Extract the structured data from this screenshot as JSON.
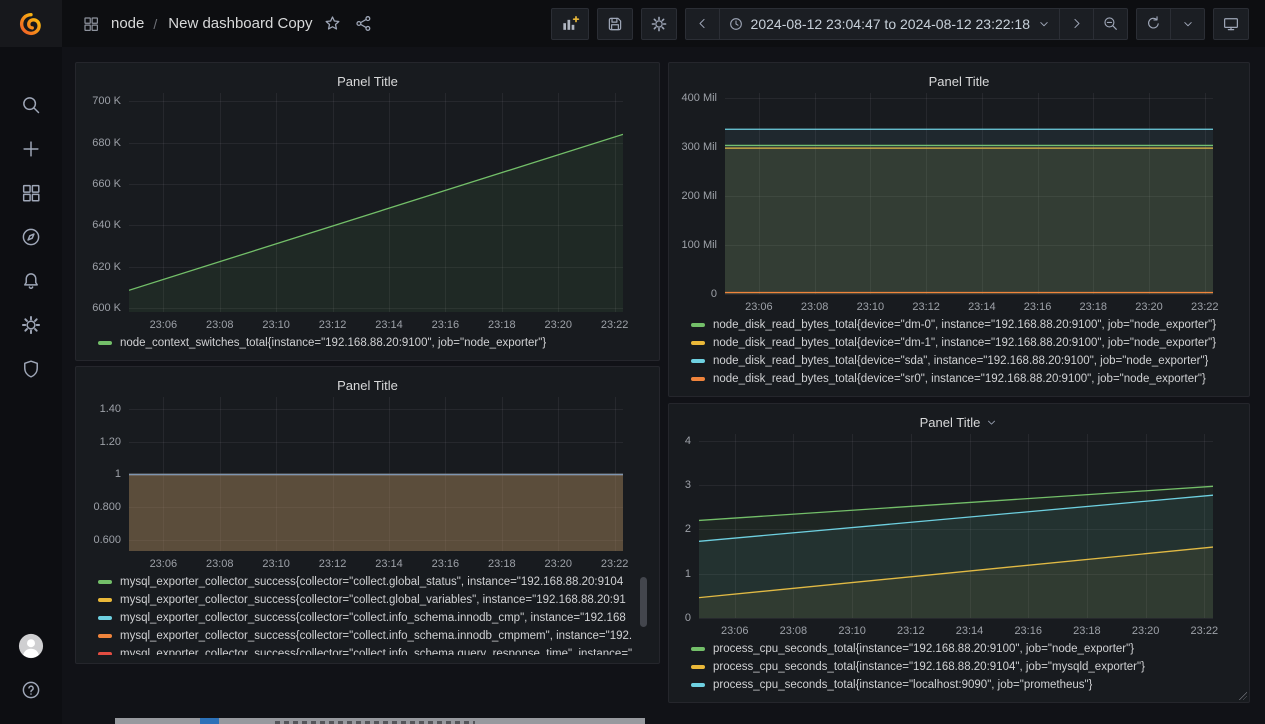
{
  "nav": {
    "breadcrumb": {
      "section": "node",
      "separator": "/",
      "title": "New dashboard Copy"
    },
    "time_range": "2024-08-12 23:04:47 to 2024-08-12 23:22:18",
    "toolbar_icons": [
      "panel-add",
      "save",
      "gear",
      "chevron-left",
      "clock",
      "chevron-down",
      "chevron-right",
      "zoom-out",
      "refresh",
      "chevron-down",
      "monitor"
    ],
    "breadcrumb_icons": [
      "apps",
      "star",
      "share"
    ]
  },
  "sidebar": {
    "top_icons": [
      "search",
      "plus",
      "apps",
      "compass",
      "bell",
      "gear",
      "shield"
    ],
    "bottom_icons": [
      "avatar",
      "question-circle"
    ],
    "logo": "grafana"
  },
  "colors": {
    "green": "#73BF69",
    "yellow": "#EAB839",
    "cyan": "#6ED0E0",
    "orange": "#EF843C",
    "red": "#E24D42",
    "panel_bg": "#181b1f",
    "dashboard_bg": "#111217"
  },
  "panels": [
    {
      "title": "Panel Title",
      "has_dropdown": false,
      "legend": [
        {
          "color": "#73BF69",
          "label": "node_context_switches_total{instance=\"192.168.88.20:9100\", job=\"node_exporter\"}"
        }
      ],
      "chart_data": {
        "type": "line",
        "ylim": [
          598000,
          704000
        ],
        "yticks": [
          {
            "v": 600000,
            "label": "600 K"
          },
          {
            "v": 620000,
            "label": "620 K"
          },
          {
            "v": 640000,
            "label": "640 K"
          },
          {
            "v": 660000,
            "label": "660 K"
          },
          {
            "v": 680000,
            "label": "680 K"
          },
          {
            "v": 700000,
            "label": "700 K"
          }
        ],
        "xticks": [
          {
            "x": 0.0695,
            "label": "23:06"
          },
          {
            "x": 0.1837,
            "label": "23:08"
          },
          {
            "x": 0.2979,
            "label": "23:10"
          },
          {
            "x": 0.4121,
            "label": "23:12"
          },
          {
            "x": 0.5263,
            "label": "23:14"
          },
          {
            "x": 0.6405,
            "label": "23:16"
          },
          {
            "x": 0.7547,
            "label": "23:18"
          },
          {
            "x": 0.8689,
            "label": "23:20"
          },
          {
            "x": 0.9831,
            "label": "23:22"
          }
        ],
        "series": [
          {
            "name": "node_context_switches_total{instance=\"192.168.88.20:9100\", job=\"node_exporter\"}",
            "color": "#73BF69",
            "fill_opacity": 0.09,
            "points": [
              [
                0,
                608500
              ],
              [
                1,
                684000
              ]
            ]
          }
        ]
      }
    },
    {
      "title": "Panel Title",
      "has_dropdown": false,
      "legend": [
        {
          "color": "#73BF69",
          "label": "node_disk_read_bytes_total{device=\"dm-0\", instance=\"192.168.88.20:9100\", job=\"node_exporter\"}"
        },
        {
          "color": "#EAB839",
          "label": "node_disk_read_bytes_total{device=\"dm-1\", instance=\"192.168.88.20:9100\", job=\"node_exporter\"}"
        },
        {
          "color": "#6ED0E0",
          "label": "node_disk_read_bytes_total{device=\"sda\", instance=\"192.168.88.20:9100\", job=\"node_exporter\"}"
        },
        {
          "color": "#EF843C",
          "label": "node_disk_read_bytes_total{device=\"sr0\", instance=\"192.168.88.20:9100\", job=\"node_exporter\"}"
        }
      ],
      "chart_data": {
        "type": "line",
        "ylim": [
          0,
          410000000
        ],
        "yticks": [
          {
            "v": 0,
            "label": "0"
          },
          {
            "v": 100000000,
            "label": "100 Mil"
          },
          {
            "v": 200000000,
            "label": "200 Mil"
          },
          {
            "v": 300000000,
            "label": "300 Mil"
          },
          {
            "v": 400000000,
            "label": "400 Mil"
          }
        ],
        "xticks": [
          {
            "x": 0.0695,
            "label": "23:06"
          },
          {
            "x": 0.1837,
            "label": "23:08"
          },
          {
            "x": 0.2979,
            "label": "23:10"
          },
          {
            "x": 0.4121,
            "label": "23:12"
          },
          {
            "x": 0.5263,
            "label": "23:14"
          },
          {
            "x": 0.6405,
            "label": "23:16"
          },
          {
            "x": 0.7547,
            "label": "23:18"
          },
          {
            "x": 0.8689,
            "label": "23:20"
          },
          {
            "x": 0.9831,
            "label": "23:22"
          }
        ],
        "series": [
          {
            "name": "dm-0",
            "color": "#73BF69",
            "fill_opacity": 0.08,
            "points": [
              [
                0,
                303000000
              ],
              [
                1,
                303000000
              ]
            ]
          },
          {
            "name": "dm-1",
            "color": "#EAB839",
            "fill_opacity": 0.08,
            "points": [
              [
                0,
                297500000
              ],
              [
                1,
                297500000
              ]
            ]
          },
          {
            "name": "sda",
            "color": "#6ED0E0",
            "fill_opacity": 0.08,
            "points": [
              [
                0,
                336000000
              ],
              [
                1,
                336000000
              ]
            ]
          },
          {
            "name": "sr0",
            "color": "#EF843C",
            "fill_opacity": 0.08,
            "points": [
              [
                0,
                3000000
              ],
              [
                1,
                3000000
              ]
            ]
          }
        ]
      }
    },
    {
      "title": "Panel Title",
      "has_dropdown": false,
      "legend": [
        {
          "color": "#73BF69",
          "label": "mysql_exporter_collector_success{collector=\"collect.global_status\", instance=\"192.168.88.20:9104"
        },
        {
          "color": "#EAB839",
          "label": "mysql_exporter_collector_success{collector=\"collect.global_variables\", instance=\"192.168.88.20:91"
        },
        {
          "color": "#6ED0E0",
          "label": "mysql_exporter_collector_success{collector=\"collect.info_schema.innodb_cmp\", instance=\"192.168"
        },
        {
          "color": "#EF843C",
          "label": "mysql_exporter_collector_success{collector=\"collect.info_schema.innodb_cmpmem\", instance=\"192."
        },
        {
          "color": "#E24D42",
          "label": "mysql_exporter_collector_success{collector=\"collect.info_schema.query_response_time\", instance=\""
        }
      ],
      "has_legend_scrollbar": true,
      "chart_data": {
        "type": "line",
        "ylim": [
          0.536,
          1.47
        ],
        "yticks": [
          {
            "v": 0.6,
            "label": "0.600"
          },
          {
            "v": 0.8,
            "label": "0.800"
          },
          {
            "v": 1,
            "label": "1"
          },
          {
            "v": 1.2,
            "label": "1.20"
          },
          {
            "v": 1.4,
            "label": "1.40"
          }
        ],
        "xticks": [
          {
            "x": 0.0695,
            "label": "23:06"
          },
          {
            "x": 0.1837,
            "label": "23:08"
          },
          {
            "x": 0.2979,
            "label": "23:10"
          },
          {
            "x": 0.4121,
            "label": "23:12"
          },
          {
            "x": 0.5263,
            "label": "23:14"
          },
          {
            "x": 0.6405,
            "label": "23:16"
          },
          {
            "x": 0.7547,
            "label": "23:18"
          },
          {
            "x": 0.8689,
            "label": "23:20"
          },
          {
            "x": 0.9831,
            "label": "23:22"
          }
        ],
        "series": [
          {
            "name": "collect.global_status",
            "color": "#73BF69",
            "fill_opacity": 0.1,
            "line_opacity": 0.5,
            "points": [
              [
                0,
                1
              ],
              [
                1,
                1
              ]
            ]
          },
          {
            "name": "collect.global_variables",
            "color": "#EAB839",
            "fill_opacity": 0.1,
            "line_opacity": 0.5,
            "points": [
              [
                0,
                1
              ],
              [
                1,
                1
              ]
            ]
          },
          {
            "name": "collect.info_schema.innodb_cmp",
            "color": "#6ED0E0",
            "fill_opacity": 0.1,
            "line_opacity": 0.5,
            "points": [
              [
                0,
                1
              ],
              [
                1,
                1
              ]
            ]
          },
          {
            "name": "collect.info_schema.innodb_cmpmem",
            "color": "#EF843C",
            "fill_opacity": 0.1,
            "line_opacity": 0.5,
            "points": [
              [
                0,
                1
              ],
              [
                1,
                1
              ]
            ]
          },
          {
            "name": "collect.info_schema.query_response_time",
            "color": "#E24D42",
            "fill_opacity": 0.1,
            "line_opacity": 0.5,
            "points": [
              [
                0,
                1
              ],
              [
                1,
                1
              ]
            ]
          }
        ],
        "overlay_line": {
          "v": 1,
          "color": "#7E95B0"
        }
      }
    },
    {
      "title": "Panel Title",
      "has_dropdown": true,
      "legend": [
        {
          "color": "#73BF69",
          "label": "process_cpu_seconds_total{instance=\"192.168.88.20:9100\", job=\"node_exporter\"}"
        },
        {
          "color": "#EAB839",
          "label": "process_cpu_seconds_total{instance=\"192.168.88.20:9104\", job=\"mysqld_exporter\"}"
        },
        {
          "color": "#6ED0E0",
          "label": "process_cpu_seconds_total{instance=\"localhost:9090\", job=\"prometheus\"}"
        }
      ],
      "has_resize_handle": true,
      "chart_data": {
        "type": "line",
        "ylim": [
          0,
          4.15
        ],
        "yticks": [
          {
            "v": 0,
            "label": "0"
          },
          {
            "v": 1,
            "label": "1"
          },
          {
            "v": 2,
            "label": "2"
          },
          {
            "v": 3,
            "label": "3"
          },
          {
            "v": 4,
            "label": "4"
          }
        ],
        "xticks": [
          {
            "x": 0.0695,
            "label": "23:06"
          },
          {
            "x": 0.1837,
            "label": "23:08"
          },
          {
            "x": 0.2979,
            "label": "23:10"
          },
          {
            "x": 0.4121,
            "label": "23:12"
          },
          {
            "x": 0.5263,
            "label": "23:14"
          },
          {
            "x": 0.6405,
            "label": "23:16"
          },
          {
            "x": 0.7547,
            "label": "23:18"
          },
          {
            "x": 0.8689,
            "label": "23:20"
          },
          {
            "x": 0.9831,
            "label": "23:22"
          }
        ],
        "series": [
          {
            "name": "node_exporter",
            "color": "#73BF69",
            "fill_opacity": 0.07,
            "points": [
              [
                0,
                2.2
              ],
              [
                1,
                2.97
              ]
            ]
          },
          {
            "name": "mysqld_exporter",
            "color": "#EAB839",
            "fill_opacity": 0.07,
            "points": [
              [
                0,
                0.46
              ],
              [
                1,
                1.6
              ]
            ]
          },
          {
            "name": "prometheus",
            "color": "#6ED0E0",
            "fill_opacity": 0.07,
            "points": [
              [
                0,
                1.73
              ],
              [
                1,
                2.77
              ]
            ]
          }
        ]
      }
    }
  ]
}
